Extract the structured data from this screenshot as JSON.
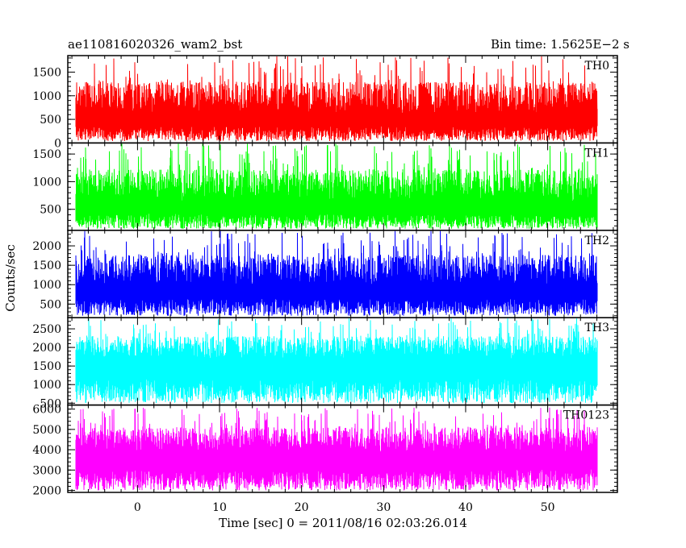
{
  "header": {
    "title": "ae110816020326_wam2_bst",
    "bin_time": "Bin time: 1.5625E−2 s"
  },
  "ylabel": "Counts/sec",
  "xlabel": "Time [sec] 0 = 2011/08/16 02:03:26.014",
  "chart_data": {
    "type": "line",
    "shared_x": {
      "range": [
        -8.5,
        58.5
      ],
      "data_range": [
        -7.5,
        56.0
      ],
      "major_ticks": [
        0,
        10,
        20,
        30,
        40,
        50
      ],
      "tick_labels": [
        "0",
        "10",
        "20",
        "30",
        "40",
        "50"
      ],
      "minor_step": 2
    },
    "panels": [
      {
        "name": "TH0",
        "color": "#ff0000",
        "ylim": [
          0,
          1850
        ],
        "yticks": [
          0,
          500,
          1000,
          1500
        ],
        "ytick_labels": [
          "0",
          "500",
          "1000",
          "1500"
        ],
        "approx_mean": 620,
        "approx_min": 40,
        "approx_max": 1850
      },
      {
        "name": "TH1",
        "color": "#00ff00",
        "ylim": [
          120,
          1700
        ],
        "yticks": [
          500,
          1000,
          1500
        ],
        "ytick_labels": [
          "500",
          "1000",
          "1500"
        ],
        "approx_mean": 650,
        "approx_min": 150,
        "approx_max": 1700
      },
      {
        "name": "TH2",
        "color": "#0000ff",
        "ylim": [
          150,
          2400
        ],
        "yticks": [
          500,
          1000,
          1500,
          2000
        ],
        "ytick_labels": [
          "500",
          "1000",
          "1500",
          "2000"
        ],
        "approx_mean": 1000,
        "approx_min": 200,
        "approx_max": 2400
      },
      {
        "name": "TH3",
        "color": "#00ffff",
        "ylim": [
          450,
          2800
        ],
        "yticks": [
          500,
          1000,
          1500,
          2000,
          2500
        ],
        "ytick_labels": [
          "500",
          "1000",
          "1500",
          "2000",
          "2500"
        ],
        "approx_mean": 1700,
        "approx_min": 500,
        "approx_max": 2800
      },
      {
        "name": "TH0123",
        "color": "#ff00ff",
        "ylim": [
          1900,
          6200
        ],
        "yticks": [
          2000,
          3000,
          4000,
          5000,
          6000
        ],
        "ytick_labels": [
          "2000",
          "3000",
          "4000",
          "5000",
          "6000"
        ],
        "approx_mean": 3900,
        "approx_min": 2000,
        "approx_max": 6100
      }
    ]
  }
}
